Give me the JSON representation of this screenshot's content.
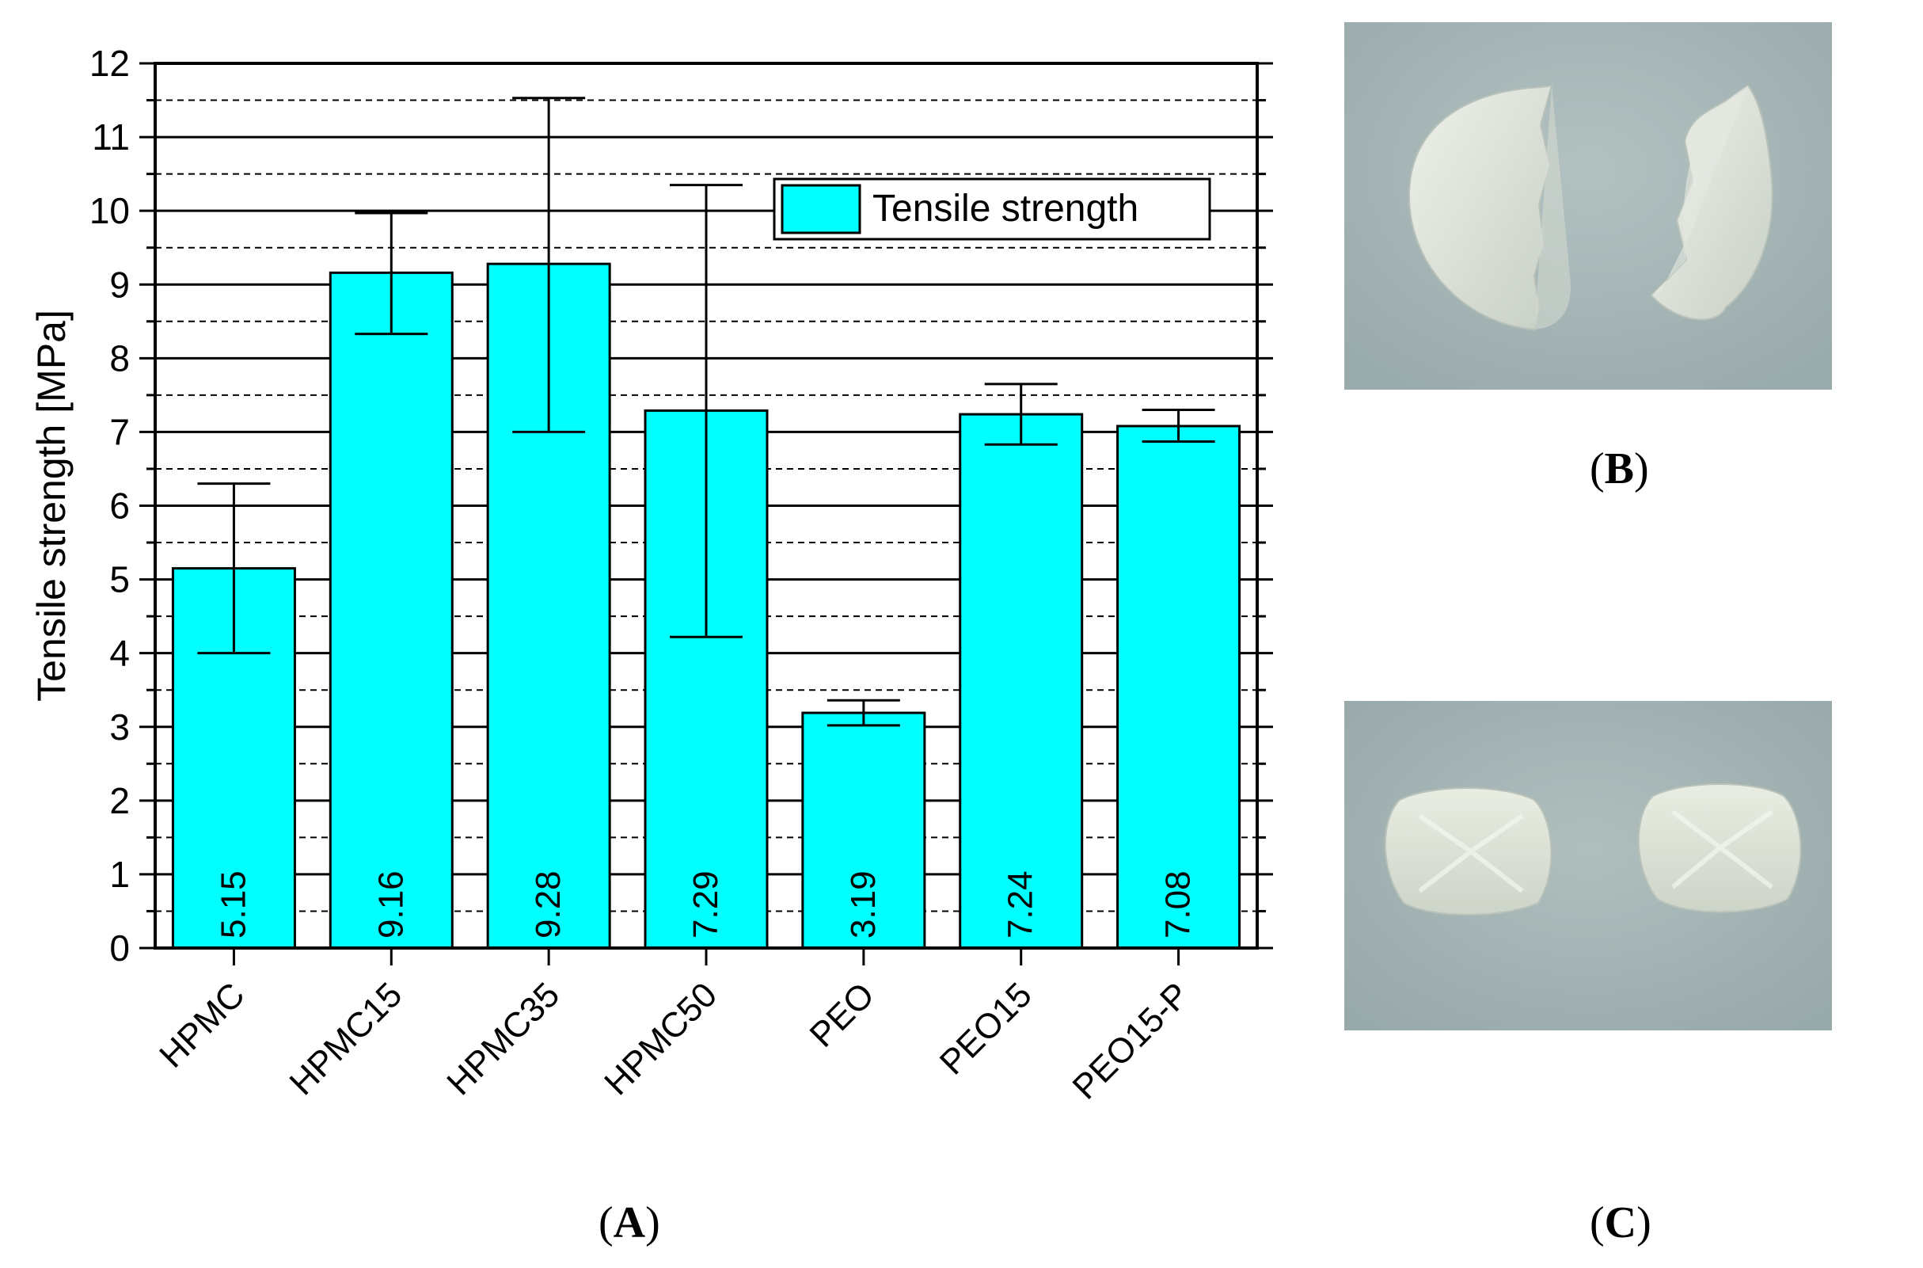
{
  "chart_data": {
    "type": "bar",
    "ylabel": "Tensile strength [MPa]",
    "ylim": [
      0,
      12
    ],
    "yticks": [
      0,
      1,
      2,
      3,
      4,
      5,
      6,
      7,
      8,
      9,
      10,
      11,
      12
    ],
    "categories": [
      "HPMC",
      "HPMC15",
      "HPMC35",
      "HPMC50",
      "PEO",
      "PEO15",
      "PEO15-P"
    ],
    "series": [
      {
        "name": "Tensile strength",
        "values": [
          5.15,
          9.16,
          9.28,
          7.29,
          3.19,
          7.24,
          7.08
        ],
        "value_labels": [
          "5.15",
          "9.16",
          "9.28",
          "7.29",
          "3.19",
          "7.24",
          "7.08"
        ],
        "err_low": [
          4.0,
          8.33,
          7.0,
          4.22,
          3.02,
          6.83,
          6.87
        ],
        "err_high": [
          6.3,
          9.97,
          11.53,
          10.35,
          3.36,
          7.65,
          7.3
        ]
      }
    ],
    "legend": {
      "label": "Tensile strength",
      "position": "top-right"
    },
    "grid": "major solid, minor dashed",
    "bar_color": "#00ffff"
  },
  "panels": {
    "a_letter": "A",
    "b_letter": "B",
    "c_letter": "C"
  },
  "photos": {
    "background_color": "#a9b8b8"
  }
}
